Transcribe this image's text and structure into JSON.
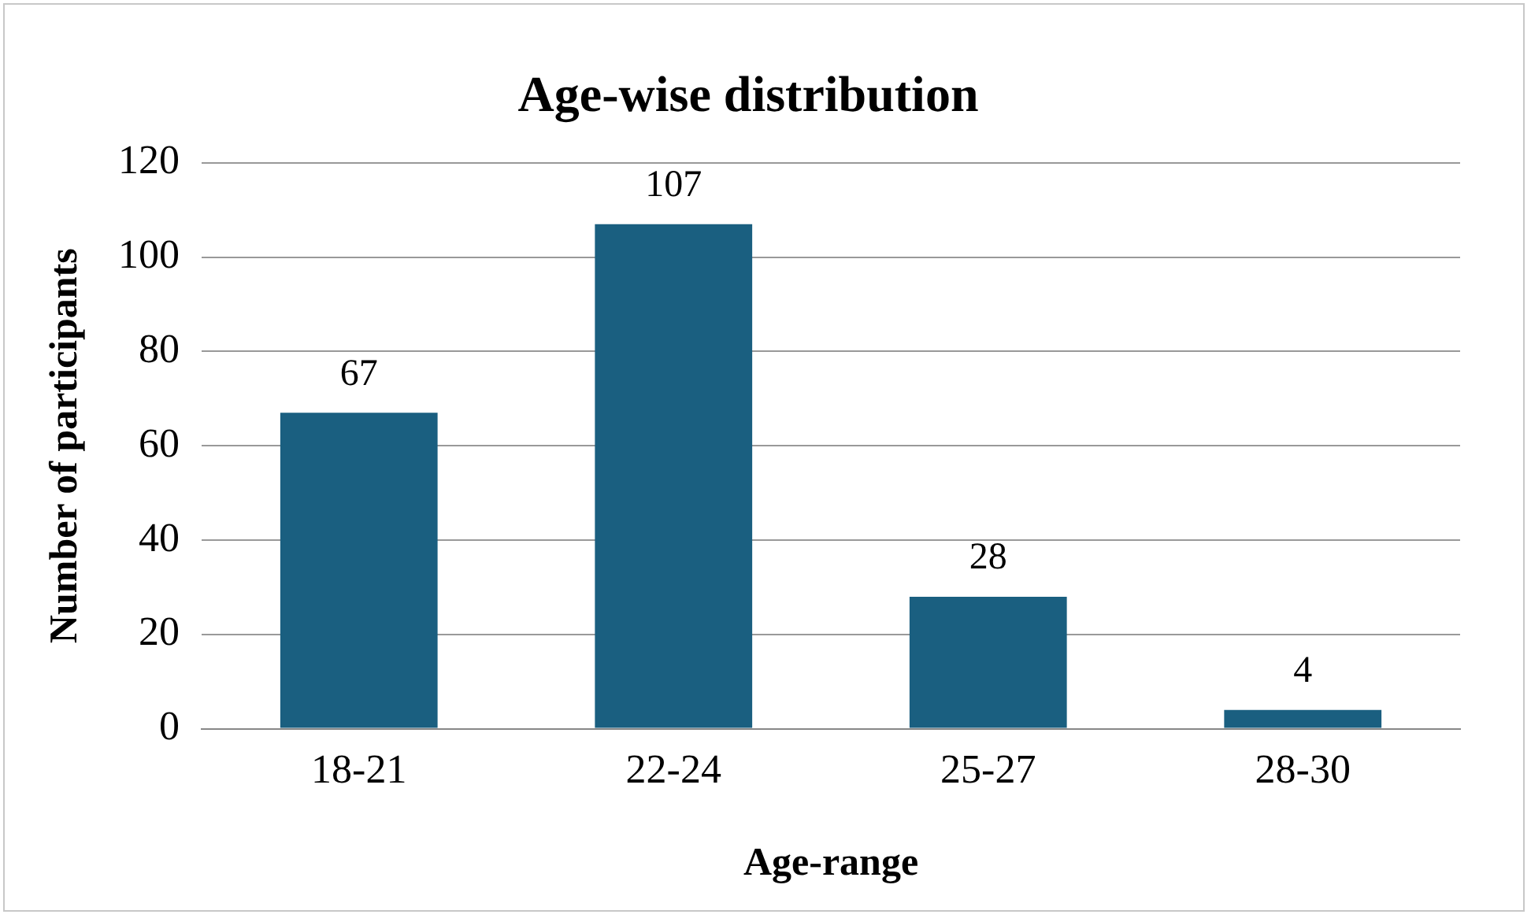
{
  "chart_data": {
    "type": "bar",
    "title": "Age-wise distribution",
    "xlabel": "Age-range",
    "ylabel": "Number of participants",
    "categories": [
      "18-21",
      "22-24",
      "25-27",
      "28-30"
    ],
    "values": [
      67,
      107,
      28,
      4
    ],
    "color": "#1a5f80",
    "ylim": [
      0,
      120
    ],
    "yticks": [
      0,
      20,
      40,
      60,
      80,
      100,
      120
    ],
    "grid": "y",
    "data_labels": true,
    "legend": false
  }
}
